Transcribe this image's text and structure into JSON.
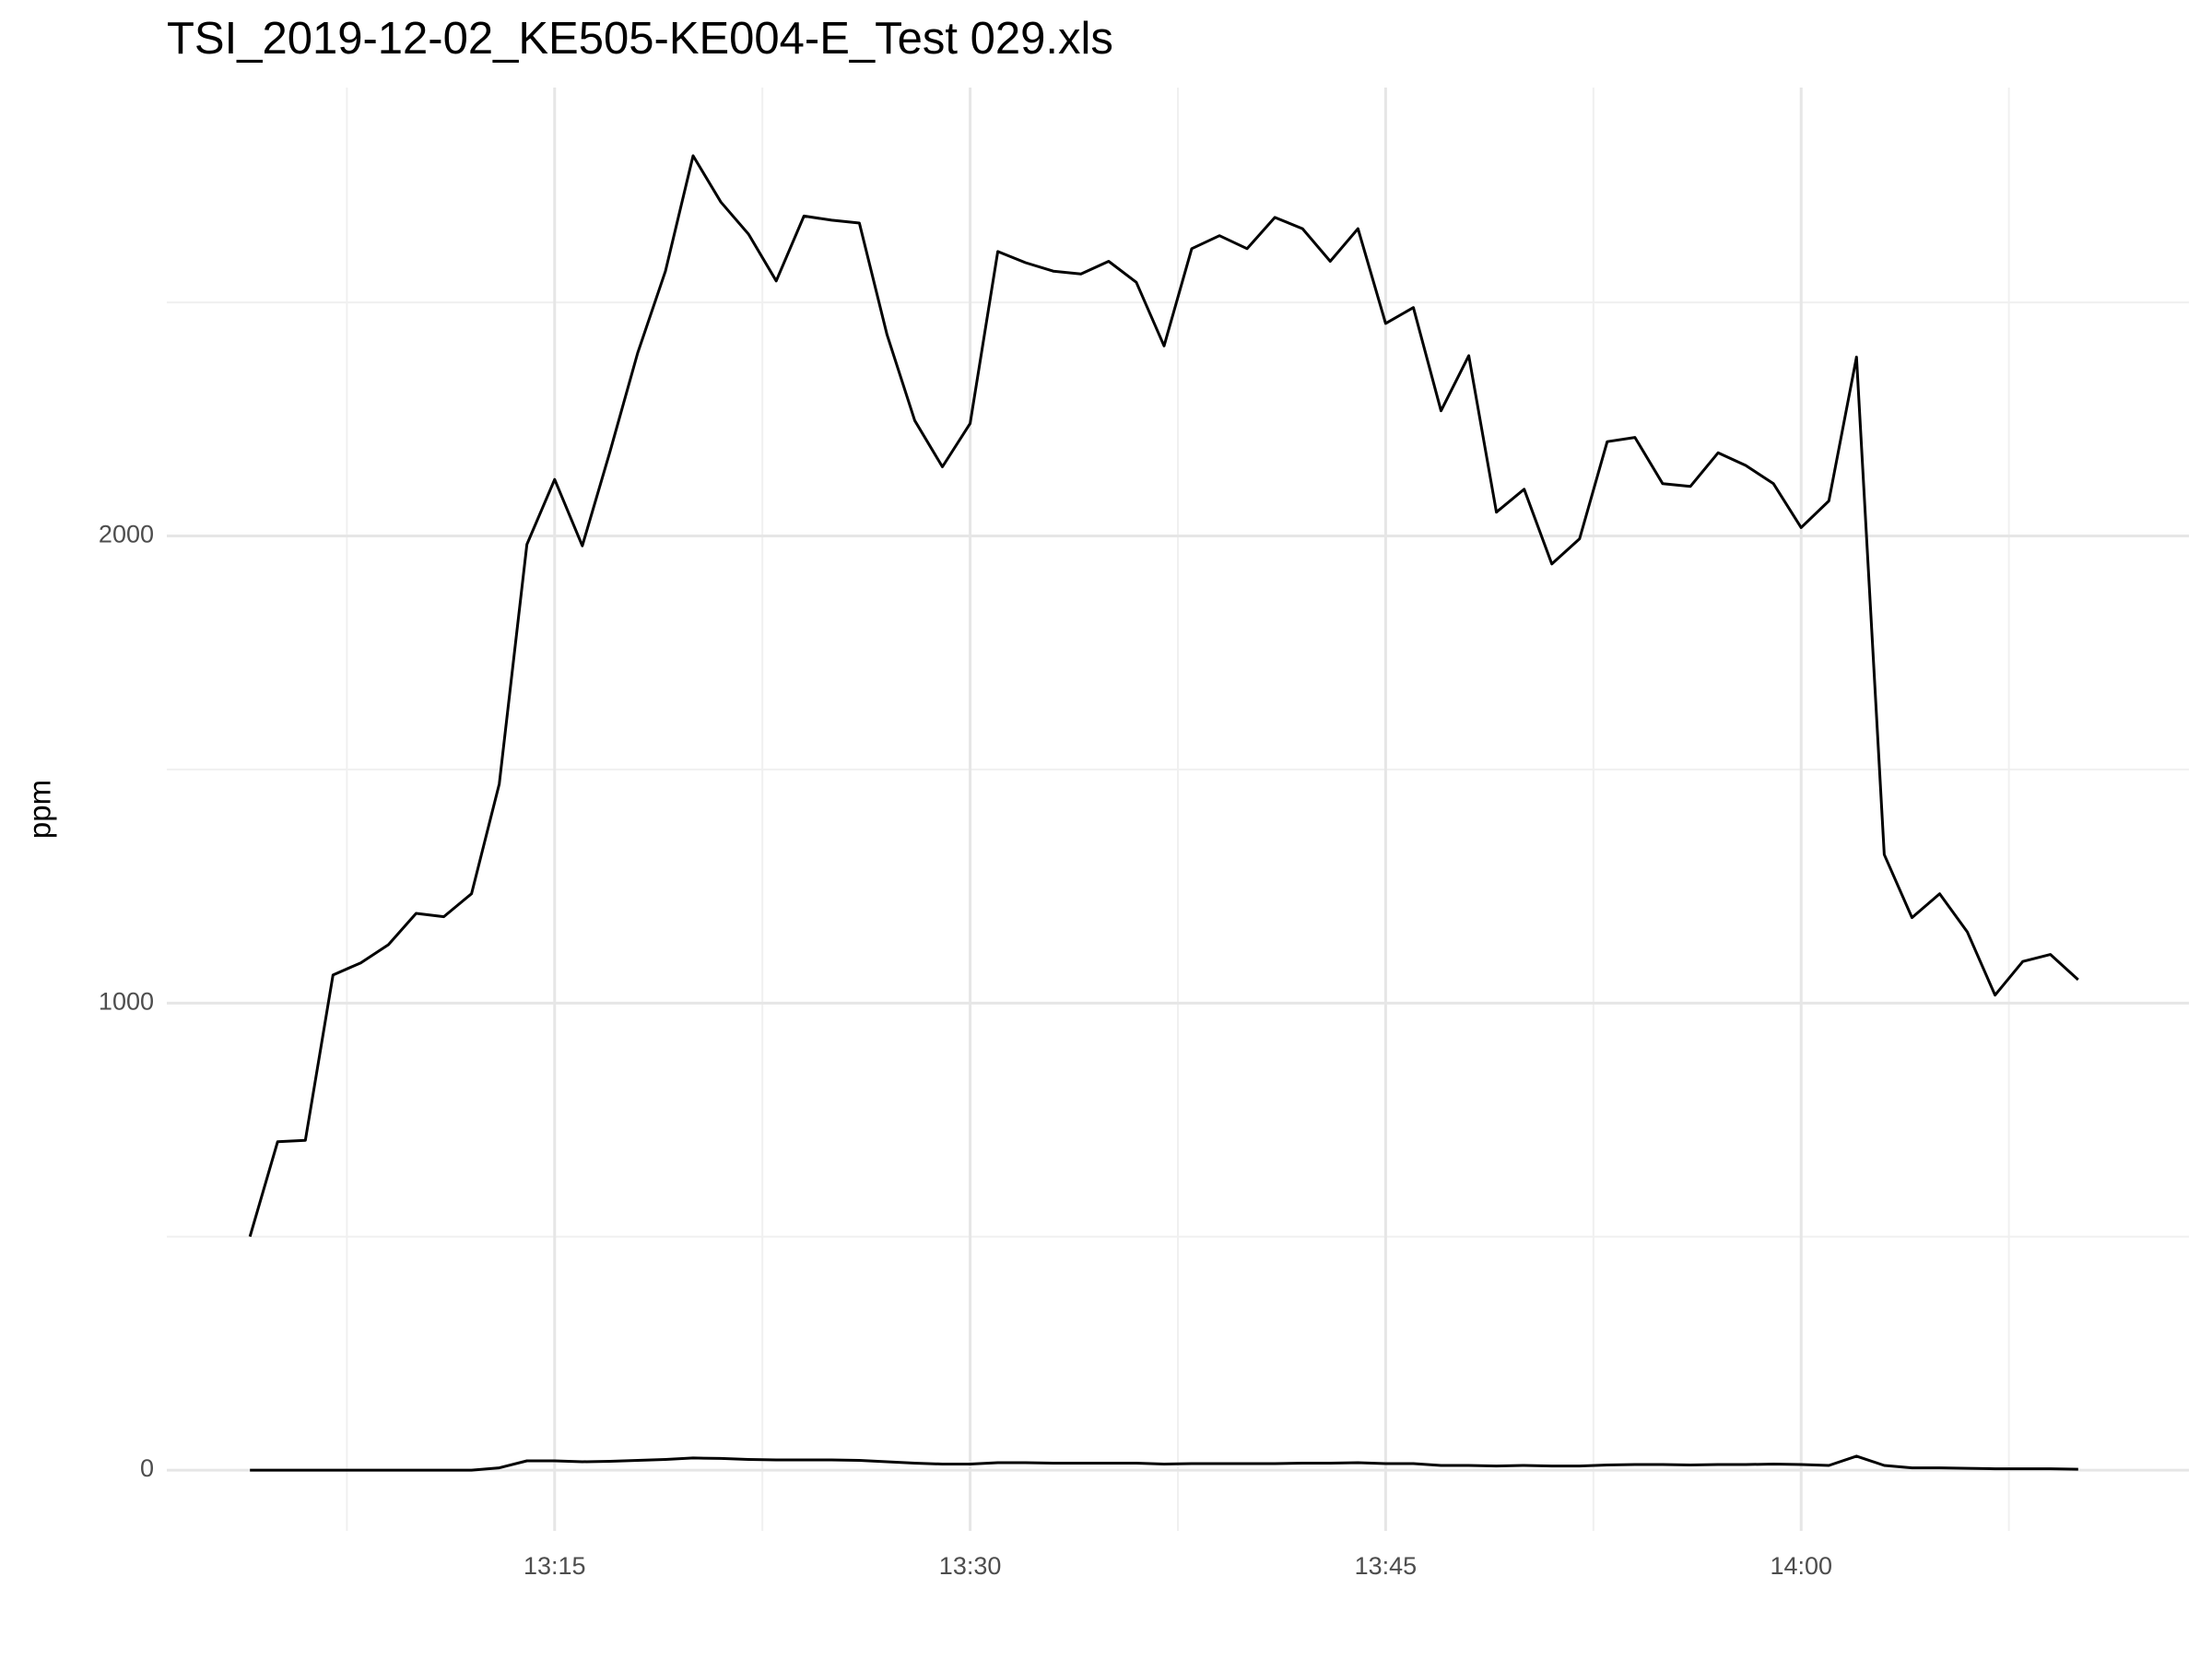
{
  "chart_data": {
    "type": "line",
    "title": "TSI_2019-12-02_KE505-KE004-E_Test 029.xls",
    "y_label": "ppm",
    "x": [
      "13:04",
      "13:05",
      "13:06",
      "13:07",
      "13:08",
      "13:09",
      "13:10",
      "13:11",
      "13:12",
      "13:13",
      "13:14",
      "13:15",
      "13:16",
      "13:17",
      "13:18",
      "13:19",
      "13:20",
      "13:21",
      "13:22",
      "13:23",
      "13:24",
      "13:25",
      "13:26",
      "13:27",
      "13:28",
      "13:29",
      "13:30",
      "13:31",
      "13:32",
      "13:33",
      "13:34",
      "13:35",
      "13:36",
      "13:37",
      "13:38",
      "13:39",
      "13:40",
      "13:41",
      "13:42",
      "13:43",
      "13:44",
      "13:45",
      "13:46",
      "13:47",
      "13:48",
      "13:49",
      "13:50",
      "13:51",
      "13:52",
      "13:53",
      "13:54",
      "13:55",
      "13:56",
      "13:57",
      "13:58",
      "13:59",
      "14:00",
      "14:01",
      "14:02",
      "14:03",
      "14:04",
      "14:05",
      "14:06",
      "14:07",
      "14:08",
      "14:09",
      "14:10"
    ],
    "series": [
      {
        "color": "#000000",
        "values": [
          500,
          703,
          706,
          1060,
          1086,
          1125,
          1192,
          1185,
          1234,
          1469,
          1982,
          2121,
          1979,
          2181,
          2392,
          2567,
          2814,
          2715,
          2646,
          2546,
          2685,
          2676,
          2670,
          2431,
          2247,
          2148,
          2241,
          2609,
          2585,
          2567,
          2561,
          2588,
          2543,
          2407,
          2615,
          2643,
          2615,
          2682,
          2658,
          2588,
          2658,
          2455,
          2489,
          2268,
          2386,
          2051,
          2100,
          1940,
          1994,
          2202,
          2211,
          2112,
          2106,
          2178,
          2151,
          2112,
          2018,
          2075,
          2383,
          1318,
          1183,
          1234,
          1152,
          1017,
          1089,
          1104,
          1050
        ]
      },
      {
        "color": "#000000",
        "values": [
          0,
          0,
          0,
          0,
          0,
          0,
          0,
          0,
          0,
          5,
          20,
          20,
          18,
          19,
          21,
          23,
          26,
          25,
          23,
          22,
          22,
          22,
          21,
          18,
          15,
          13,
          13,
          16,
          16,
          15,
          15,
          15,
          15,
          13,
          14,
          14,
          14,
          14,
          15,
          15,
          16,
          14,
          14,
          10,
          10,
          9,
          10,
          9,
          9,
          11,
          12,
          12,
          11,
          12,
          12,
          13,
          12,
          10,
          30,
          10,
          5,
          5,
          4,
          3,
          3,
          3,
          2
        ]
      }
    ],
    "xlim": [
      "13:01",
      "14:14"
    ],
    "xticks": [
      "13:15",
      "13:30",
      "13:45",
      "14:00"
    ],
    "ylim": [
      -130,
      2960
    ],
    "yticks": [
      0,
      1000,
      2000
    ],
    "grid": true
  }
}
